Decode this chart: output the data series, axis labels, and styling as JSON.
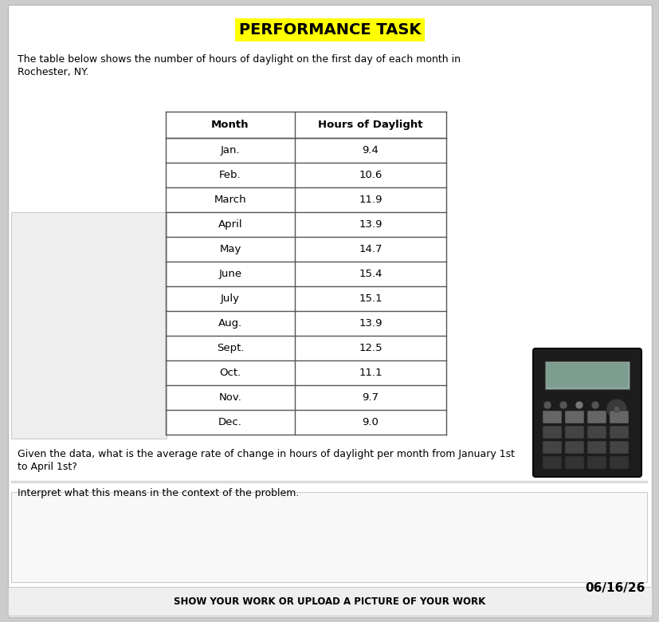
{
  "title": "PERFORMANCE TASK",
  "title_highlight_color": "#FFFF00",
  "title_text_color": "#000000",
  "intro_line1": "The table below shows the number of hours of daylight on the first day of each month in",
  "intro_line2": "Rochester, NY.",
  "table_headers": [
    "Month",
    "Hours of Daylight"
  ],
  "table_months": [
    "Jan.",
    "Feb.",
    "March",
    "April",
    "May",
    "June",
    "July",
    "Aug.",
    "Sept.",
    "Oct.",
    "Nov.",
    "Dec."
  ],
  "table_values": [
    "9.4",
    "10.6",
    "11.9",
    "13.9",
    "14.7",
    "15.4",
    "15.1",
    "13.9",
    "12.5",
    "11.1",
    "9.7",
    "9.0"
  ],
  "question_line1": "Given the data, what is the average rate of change in hours of daylight per month from January 1st",
  "question_line2": "to April 1st?",
  "interpret_text": "Interpret what this means in the context of the problem.",
  "footer_text": "SHOW YOUR WORK OR UPLOAD A PICTURE OF YOUR WORK",
  "date_text": "06/16/26",
  "bg_color": "#FFFFFF",
  "page_bg_color": "#CCCCCC",
  "table_border_color": "#555555",
  "body_text_color": "#000000",
  "work_box1_color": "#F0F0F0",
  "work_box2_color": "#F0F0F0",
  "calc_body_color": "#1a1a1a",
  "calc_screen_color": "#8ab8a8",
  "title_font_size": 14,
  "body_font_size": 9,
  "table_font_size": 9.5,
  "header_font_size": 9.5,
  "footer_font_size": 8.5,
  "date_font_size": 11
}
